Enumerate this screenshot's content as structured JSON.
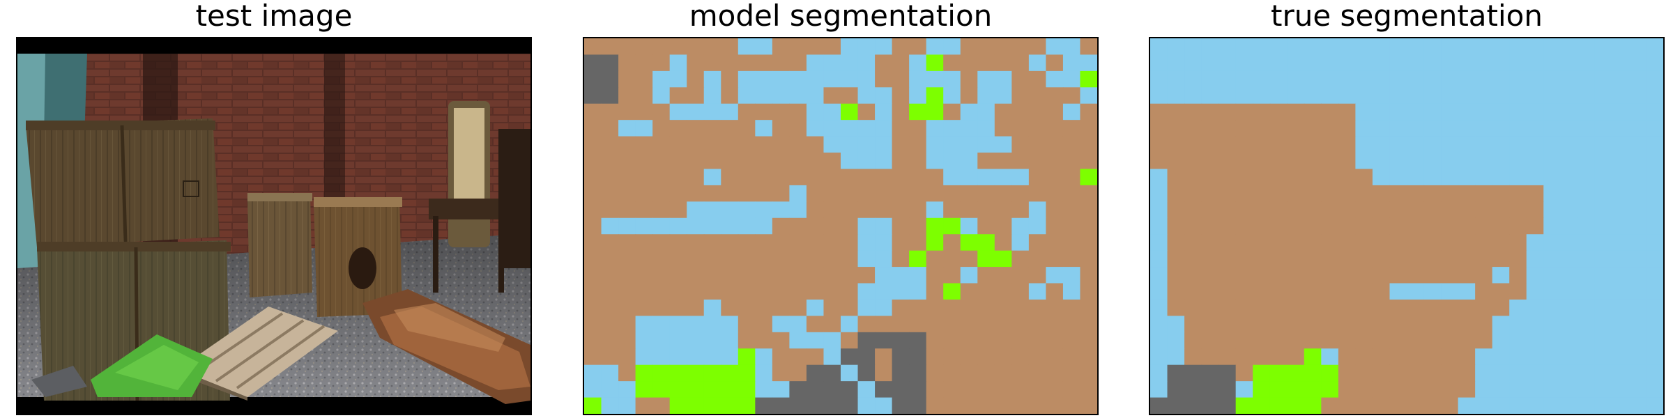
{
  "figure": {
    "panels": [
      {
        "title": "test image",
        "kind": "photo",
        "description": ""
      },
      {
        "title": "model segmentation",
        "kind": "segmentation",
        "grid_key": "model"
      },
      {
        "title": "true segmentation",
        "kind": "segmentation",
        "grid_key": "truth"
      }
    ]
  },
  "colors": {
    "B": "#bc8c64",
    "S": "#87cdee",
    "G": "#666666",
    "L": "#7dff00",
    "frame": "#000000",
    "black_bar": "#000000"
  },
  "legend_classes": {
    "B": "brown region",
    "S": "light-blue region",
    "G": "gray region",
    "L": "green region"
  },
  "model_grid": [
    "BBBBBBBBBSSBBBBSSSBBSSBBBBBSSB",
    "GGBBBSBBBBBBBSSSSBBSLBBBBBSBSS",
    "GGBBSSBSBSSSSSSSSBBSSSBSSBBSSL",
    "GGBBSBBSBSSSSSBBSSBSLSBSSBBBBS",
    "BBBBBSSSSBBBBSSLBSBLLBSSBBBBSB",
    "BBSSBBBBBBSBBSSSSSBBSSSSBBBBBB",
    "BBBBBBBBBBBBBBSSSSBBSSSSSBBBBB",
    "BBBBBBBBBBBBBBBSSSBBSSSBBBBBBB",
    "BBBBBBBSBBBBBBBBBBBBBSSSSSBBBL",
    "BBBBBBBBBBBBSBBBBBBBBBBBBBBBBB",
    "BBBBBBSSSSSSSBBBBBBBSBBBBBSBBB",
    "BSSSSSSSSSSBBBBBSSBBLLSBBSSBBB",
    "BBBBBBBBBBBBBBBBSSBBLBLLBSBBBB",
    "BBBBBBBBBBBBBBBBSSBLBBBLLBBBBB",
    "BBBBBBBBBBBBBBBBBSSSBBSBBBBSSB",
    "BBBBBBBBBBBBBBBBSSSSBLBBBBSBSB",
    "BBBBBBBSBBBBBSBBSSBBBBBBBBBBBB",
    "BBBSSSSSSBBSSBBSBBBBBBBBBBBBBB",
    "BBBSSSSSSBBBSSSBGGGGBBBBBBBBBB",
    "BBBSSSSSSLSBBBSGGBGGBBBBBBBBBB",
    "SSBLLLLLLLSBBGGSGBGGBBBBBBBBBB",
    "SSSLLLLLLLSSGGGGSGGGBBBBBBBBBB",
    "LSSBBLLLLLGGGGGGSSGGBBBBBBBBBB"
  ],
  "truth_grid": [
    "SSSSSSSSSSSSSSSSSSSSSSSSSSSSSS",
    "SSSSSSSSSSSSSSSSSSSSSSSSSSSSSS",
    "SSSSSSSSSSSSSSSSSSSSSSSSSSSSSS",
    "SSSSSSSSSSSSSSSSSSSSSSSSSSSSSS",
    "BBBBBBBBBBBBSSSSSSSSSSSSSSSSSS",
    "BBBBBBBBBBBBSSSSSSSSSSSSSSSSSS",
    "BBBBBBBBBBBBSSSSSSSSSSSSSSSSSS",
    "BBBBBBBBBBBBSSSSSSSSSSSSSSSSSS",
    "SBBBBBBBBBBBBSSSSSSSSSSSSSSSSS",
    "SBBBBBBBBBBBBBBBBBBBBBBSSSSSSS",
    "SBBBBBBBBBBBBBBBBBBBBBBSSSSSSS",
    "SBBBBBBBBBBBBBBBBBBBBBBSSSSSSS",
    "SBBBBBBBBBBBBBBBBBBBBBSSSSSSSS",
    "SBBBBBBBBBBBBBBBBBBBBBSSSSSSSS",
    "SBBBBBBBBBBBBBBBBBBBSBSSSSSSSS",
    "SBBBBBBBBBBBBBSSSSSBBBSSSSSSSS",
    "SBBBBBBBBBBBBBBBBBBBBSSSSSSSSS",
    "SSBBBBBBBBBBBBBBBBBBSSSSSSSSSS",
    "SSBBBBBBBBBBBBBBBBBBSSSSSSSSSS",
    "SSBBBBBBBLSBBBBBBBBSSSSSSSSSSS",
    "SGGGGBLLLLLBBBBBBBBSSSSSSSSSSS",
    "SGGGGSLLLLLBBBBBBBBSSSSSSSSSSS",
    "GGGGGLLLLLBBBBBBBBSSSSSSSSSSSS"
  ]
}
